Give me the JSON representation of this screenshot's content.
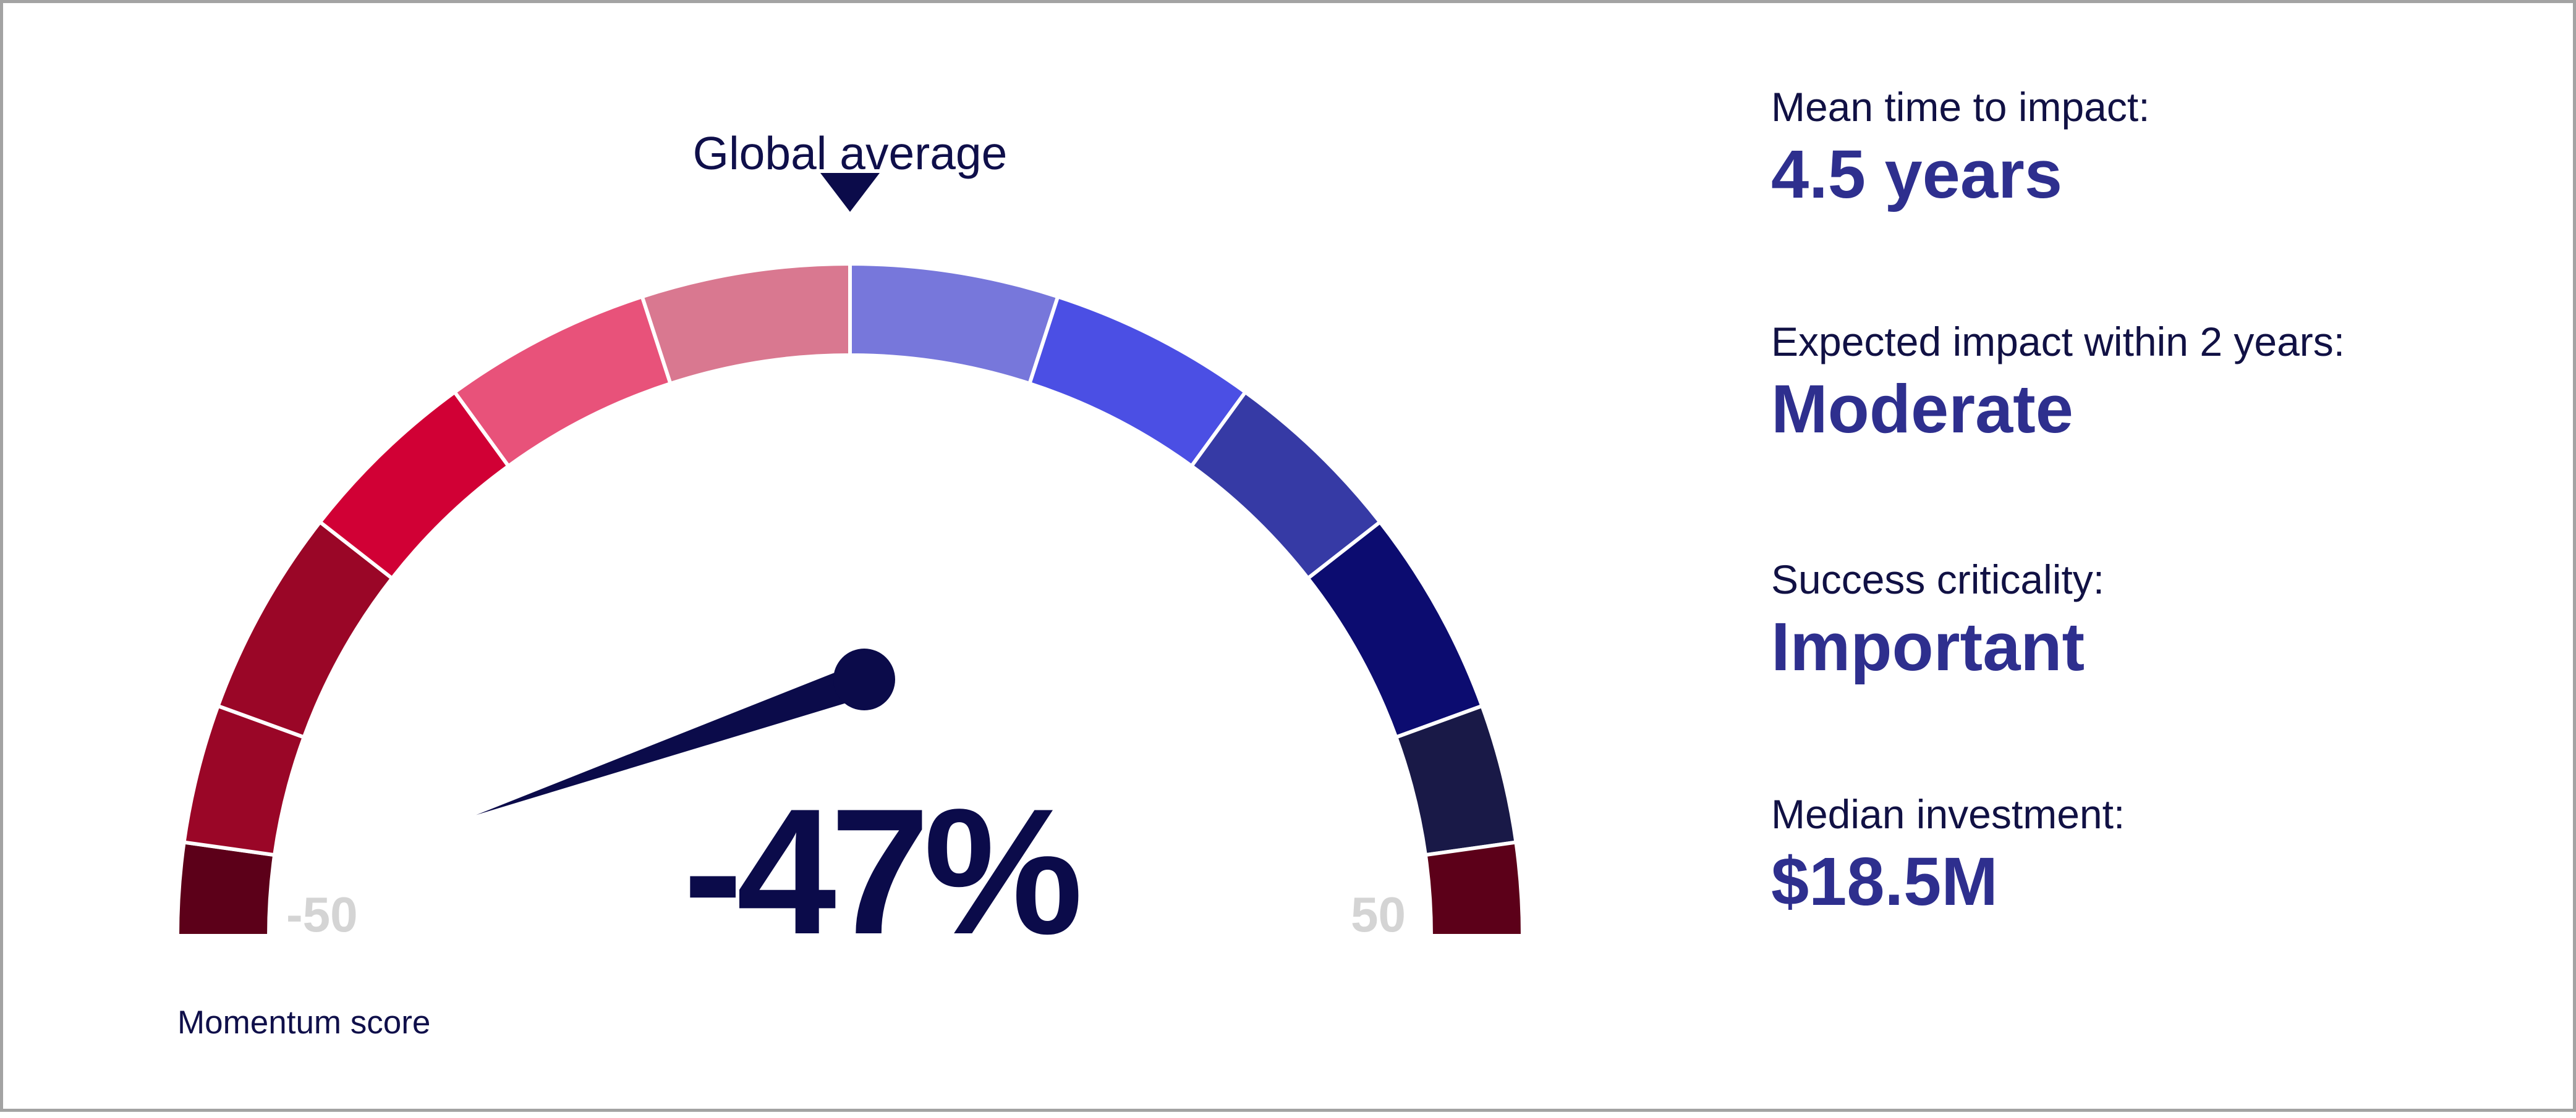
{
  "chart_data": {
    "type": "gauge",
    "value": -47,
    "value_label": "-47%",
    "min": -50,
    "max": 50,
    "min_label": "-50",
    "max_label": "50",
    "reference_marker_label": "Global average",
    "axis_caption": "Momentum score",
    "segment_colors": [
      "#5c0019",
      "#9a0627",
      "#9a0627",
      "#d10035",
      "#e8527a",
      "#d97890",
      "#7777db",
      "#4b4fe4",
      "#363aa5",
      "#0c0c70",
      "#191947"
    ]
  },
  "stats": [
    {
      "label": "Mean time to impact:",
      "value": "4.5 years"
    },
    {
      "label": "Expected impact within 2 years:",
      "value": "Moderate"
    },
    {
      "label": "Success criticality:",
      "value": "Important"
    },
    {
      "label": "Median investment:",
      "value": "$18.5M"
    }
  ]
}
